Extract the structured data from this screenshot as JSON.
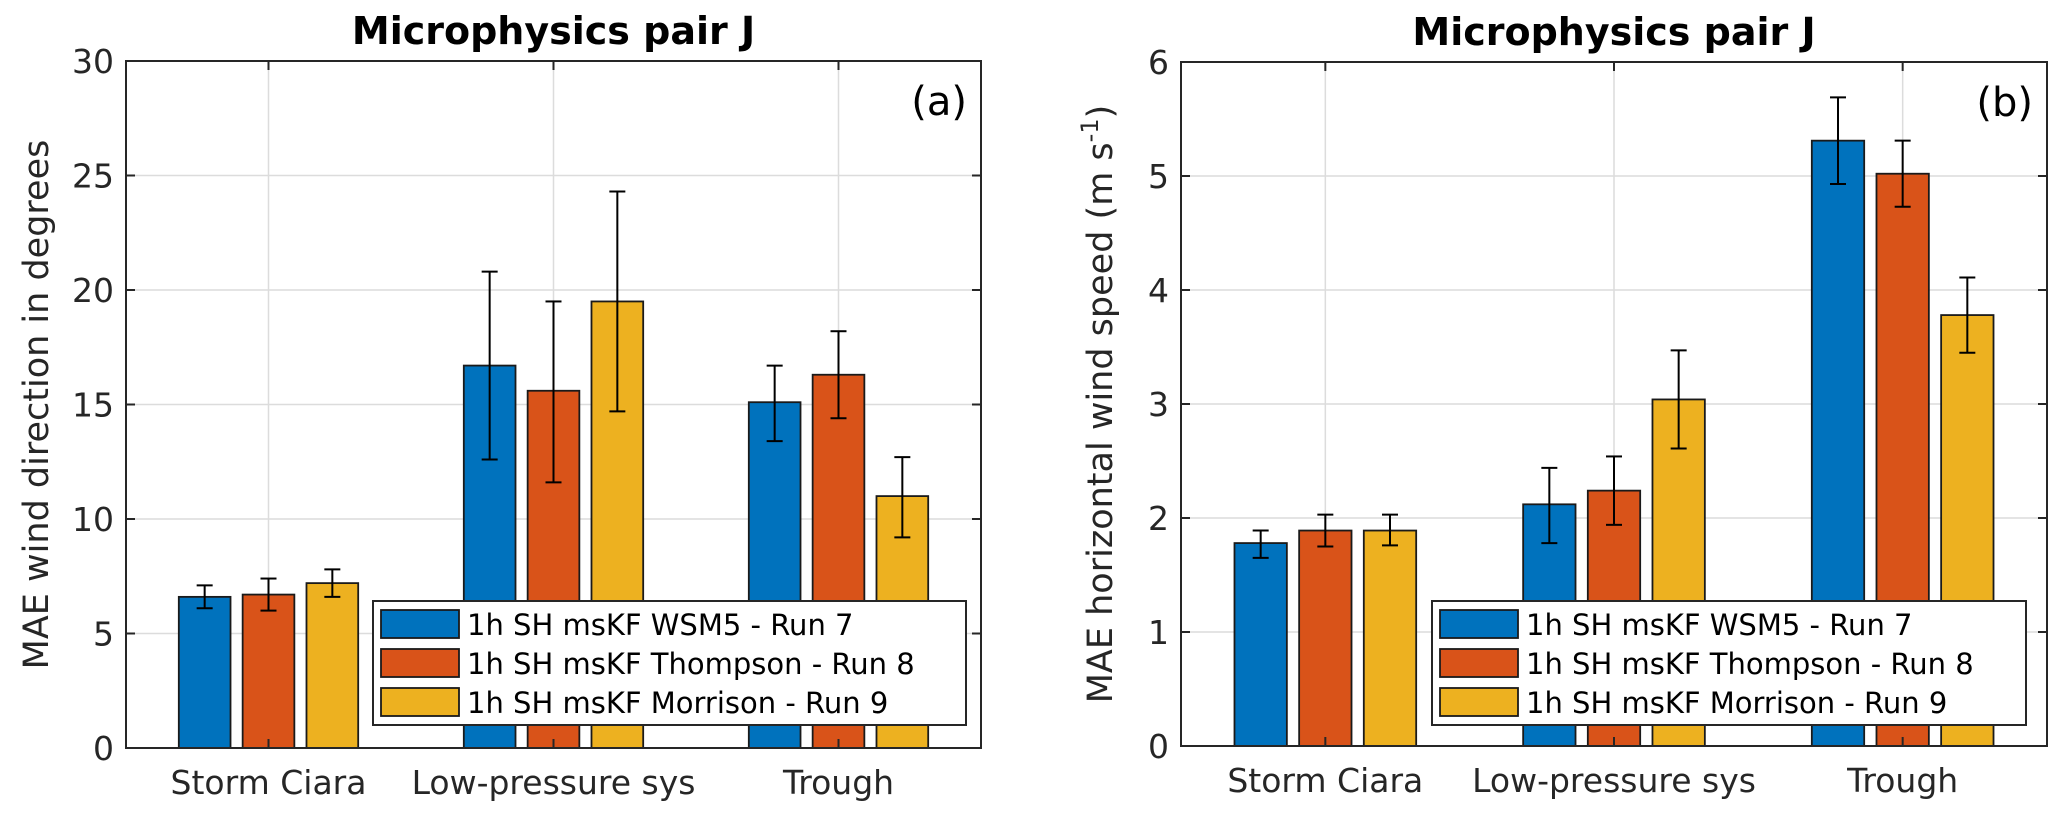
{
  "chart_data": [
    {
      "type": "bar",
      "panel_tag": "(a)",
      "title": "Microphysics pair J",
      "xlabel": "",
      "ylabel": "MAE wind direction in degrees",
      "ylabel_superscript": "",
      "ylabel_suffix": "",
      "ylim": [
        0,
        30
      ],
      "yticks": [
        0,
        5,
        10,
        15,
        20,
        25,
        30
      ],
      "grid": true,
      "legend_position": "bottom-right",
      "categories": [
        "Storm Ciara",
        "Low-pressure sys",
        "Trough"
      ],
      "series": [
        {
          "name": "1h SH msKF WSM5 - Run 7",
          "color": "#0072BD",
          "values": [
            6.6,
            16.7,
            15.1
          ],
          "err_low": [
            6.1,
            12.6,
            13.4
          ],
          "err_high": [
            7.1,
            20.8,
            16.7
          ]
        },
        {
          "name": "1h SH msKF Thompson - Run 8",
          "color": "#D95319",
          "values": [
            6.7,
            15.6,
            16.3
          ],
          "err_low": [
            6.0,
            11.6,
            14.4
          ],
          "err_high": [
            7.4,
            19.5,
            18.2
          ]
        },
        {
          "name": "1h SH msKF Morrison - Run 9",
          "color": "#EDB120",
          "values": [
            7.2,
            19.5,
            11.0
          ],
          "err_low": [
            6.6,
            14.7,
            9.2
          ],
          "err_high": [
            7.8,
            24.3,
            12.7
          ]
        }
      ]
    },
    {
      "type": "bar",
      "panel_tag": "(b)",
      "title": "Microphysics pair J",
      "xlabel": "",
      "ylabel": "MAE horizontal wind speed (m s",
      "ylabel_superscript": "-1",
      "ylabel_suffix": ")",
      "ylim": [
        0,
        6
      ],
      "yticks": [
        0,
        1,
        2,
        3,
        4,
        5,
        6
      ],
      "grid": true,
      "legend_position": "bottom-right",
      "categories": [
        "Storm Ciara",
        "Low-pressure sys",
        "Trough"
      ],
      "series": [
        {
          "name": "1h SH msKF WSM5 - Run 7",
          "color": "#0072BD",
          "values": [
            1.78,
            2.12,
            5.31
          ],
          "err_low": [
            1.65,
            1.78,
            4.93
          ],
          "err_high": [
            1.89,
            2.44,
            5.69
          ]
        },
        {
          "name": "1h SH msKF Thompson - Run 8",
          "color": "#D95319",
          "values": [
            1.89,
            2.24,
            5.02
          ],
          "err_low": [
            1.75,
            1.94,
            4.73
          ],
          "err_high": [
            2.03,
            2.54,
            5.31
          ]
        },
        {
          "name": "1h SH msKF Morrison - Run 9",
          "color": "#EDB120",
          "values": [
            1.89,
            3.04,
            3.78
          ],
          "err_low": [
            1.76,
            2.61,
            3.45
          ],
          "err_high": [
            2.03,
            3.47,
            4.11
          ]
        }
      ]
    }
  ]
}
